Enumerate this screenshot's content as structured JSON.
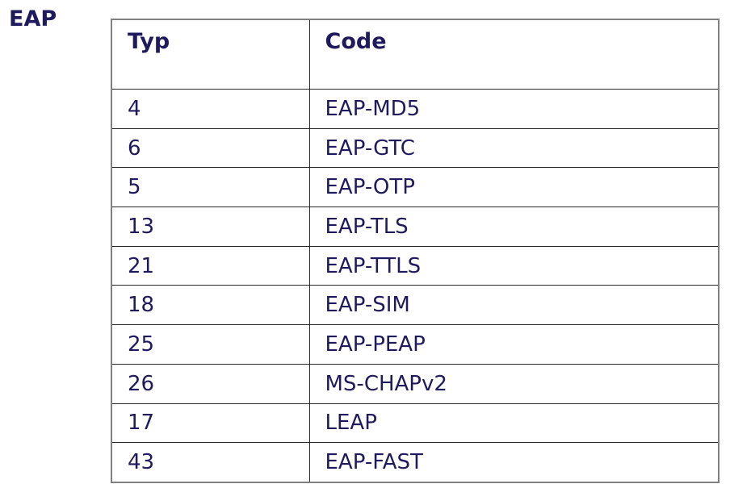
{
  "page": {
    "section_label": "EAP"
  },
  "table": {
    "headers": {
      "typ": "Typ",
      "code": "Code"
    },
    "rows": [
      {
        "typ": "4",
        "code": "EAP-MD5"
      },
      {
        "typ": "6",
        "code": "EAP-GTC"
      },
      {
        "typ": "5",
        "code": "EAP-OTP"
      },
      {
        "typ": "13",
        "code": "EAP-TLS"
      },
      {
        "typ": "21",
        "code": "EAP-TTLS"
      },
      {
        "typ": "18",
        "code": "EAP-SIM"
      },
      {
        "typ": "25",
        "code": "EAP-PEAP"
      },
      {
        "typ": "26",
        "code": "MS-CHAPv2"
      },
      {
        "typ": "17",
        "code": "LEAP"
      },
      {
        "typ": "43",
        "code": "EAP-FAST"
      }
    ]
  },
  "colors": {
    "text": "#1f1a5e",
    "outer_border": "#808080",
    "inner_border": "#262626",
    "background": "#ffffff"
  }
}
